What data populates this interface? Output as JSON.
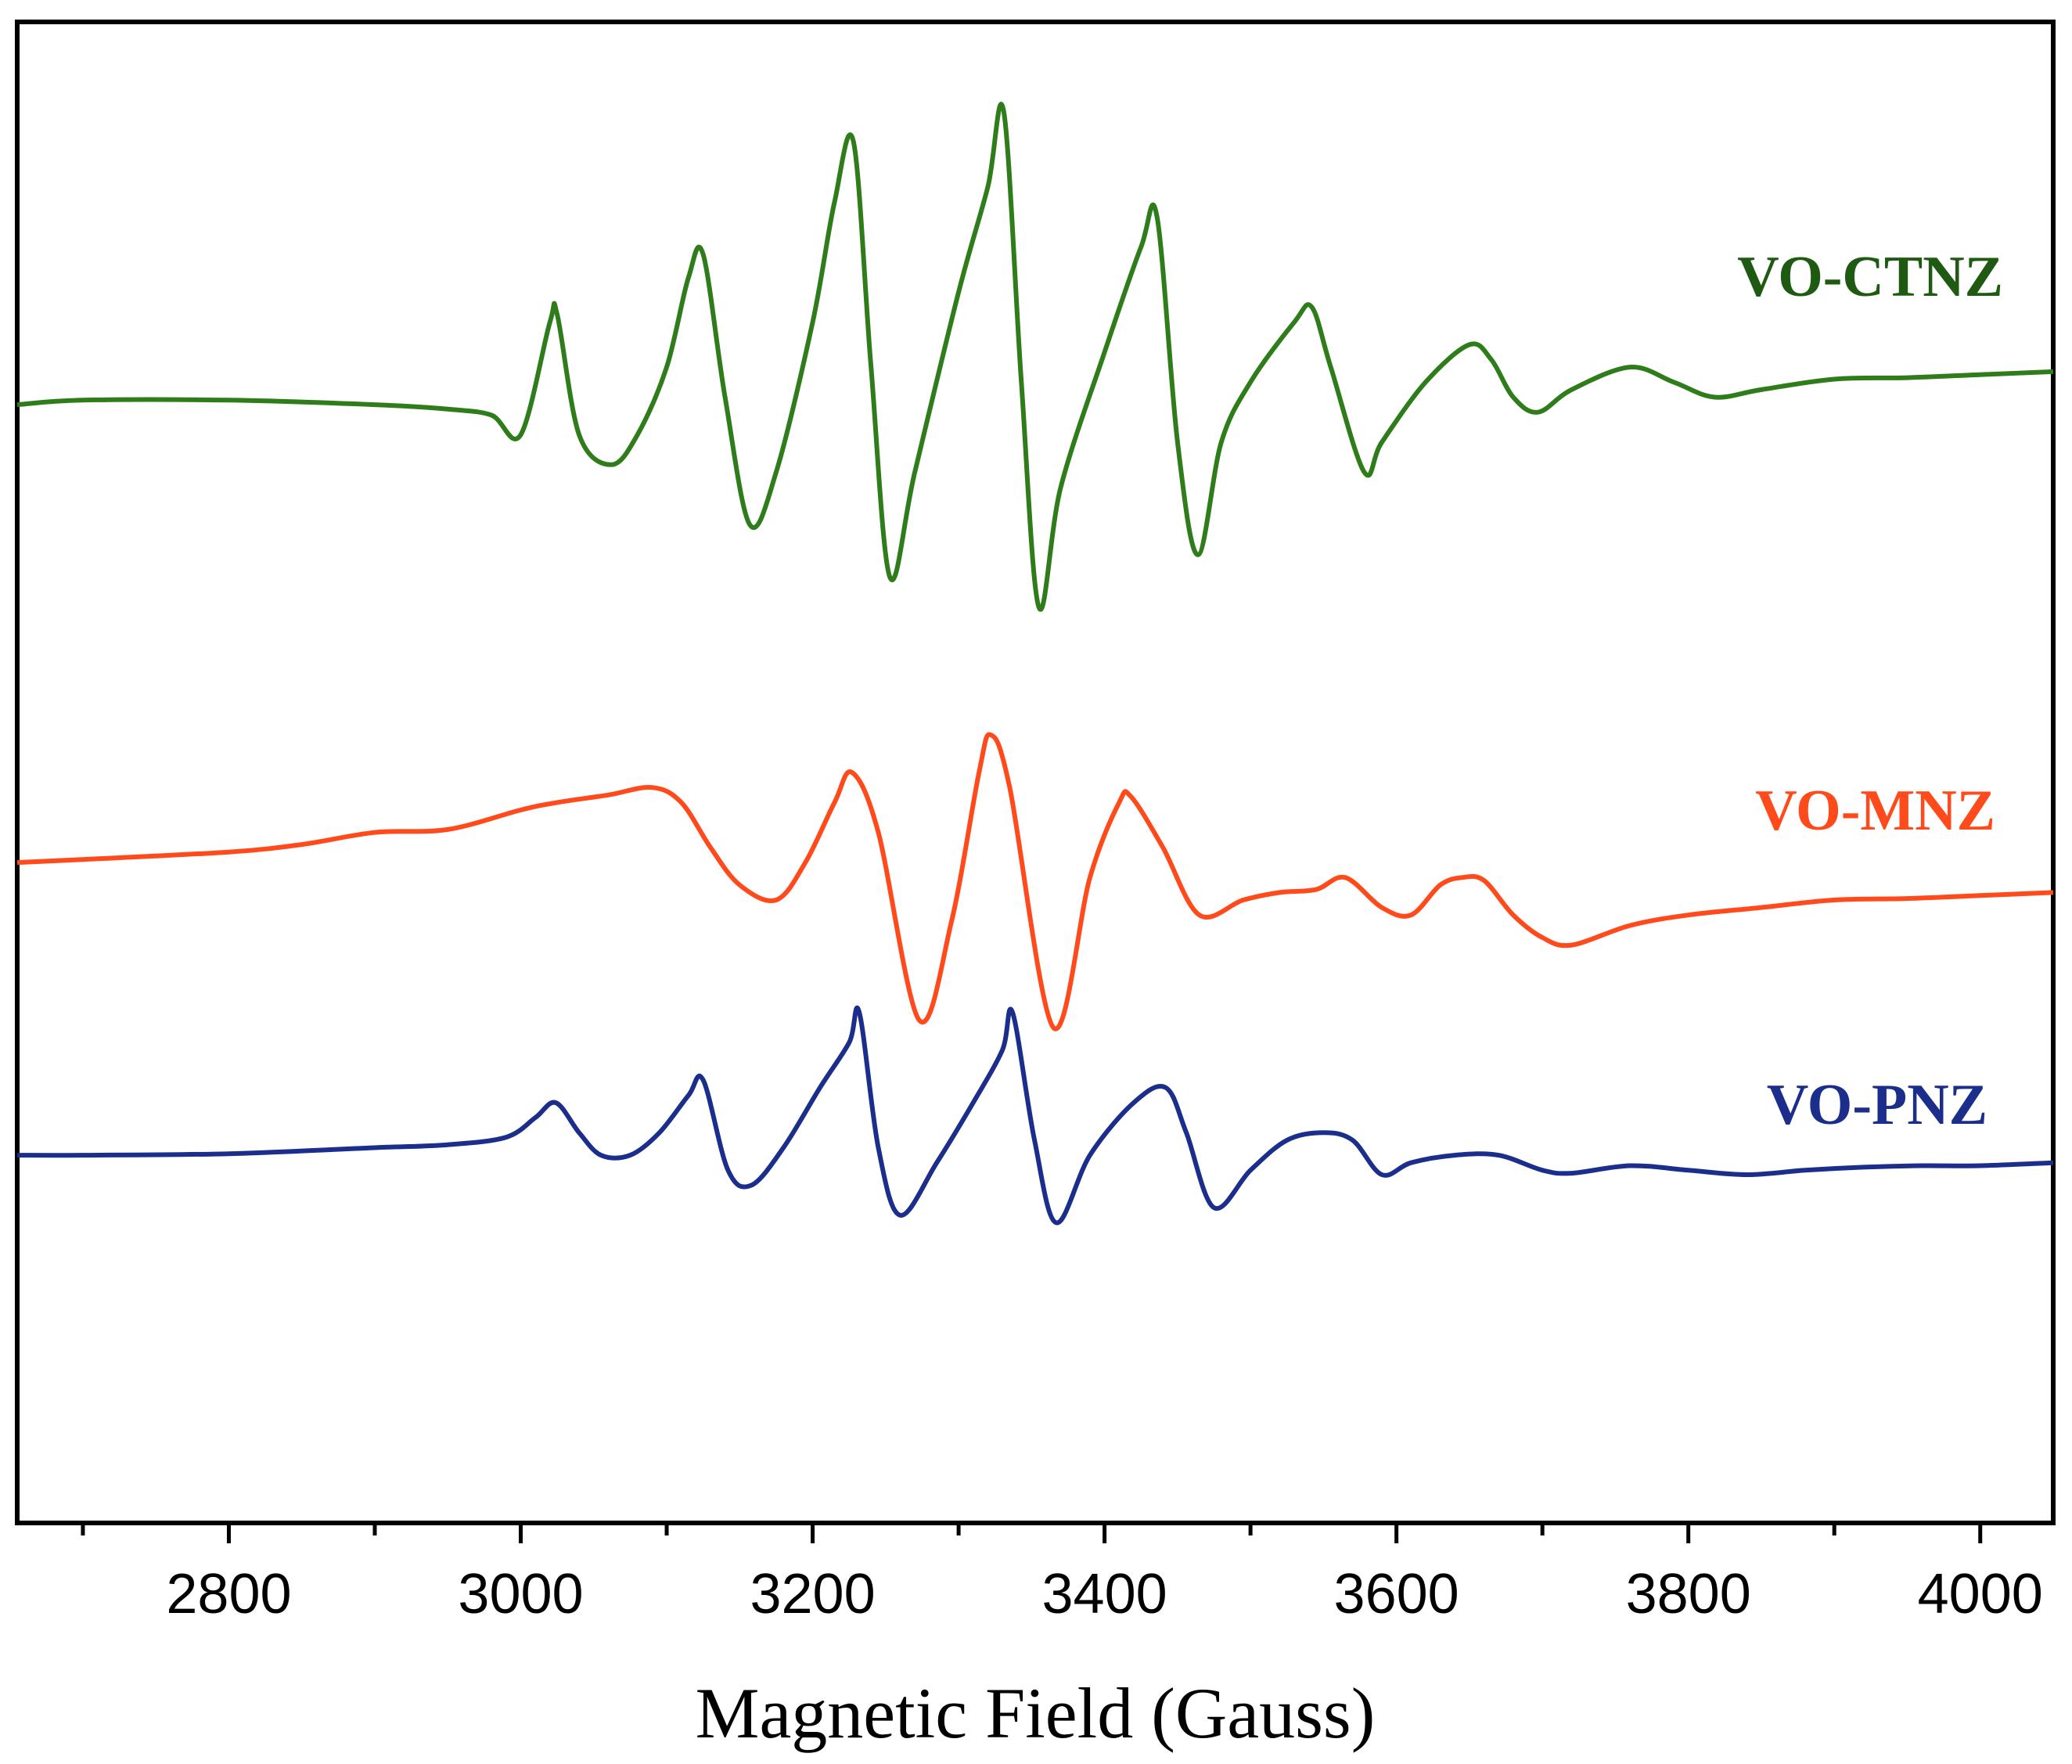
{
  "chart_data": {
    "type": "line",
    "title": "",
    "xlabel": "Magnetic Field (Gauss)",
    "ylabel": "",
    "xlim": [
      2655,
      4050
    ],
    "ylim": [
      0,
      1
    ],
    "y_axis_visible": false,
    "grid": false,
    "xticks": [
      2800,
      3000,
      3200,
      3400,
      3600,
      3800,
      4000
    ],
    "xtick_labels": [
      "2800",
      "3000",
      "3200",
      "3400",
      "3600",
      "3800",
      "4000"
    ],
    "minor_xticks": [
      2700,
      2900,
      3100,
      3300,
      3500,
      3700,
      3900
    ],
    "series": [
      {
        "name": "VO-CTNZ",
        "label": "VO-CTNZ",
        "color": "#2e7d1a",
        "label_color": "#1e5a12",
        "x": [
          2655,
          2700,
          2800,
          2900,
          2950,
          2980,
          3000,
          3020,
          3025,
          3040,
          3062,
          3080,
          3100,
          3115,
          3125,
          3140,
          3157,
          3175,
          3200,
          3215,
          3228,
          3240,
          3253,
          3270,
          3300,
          3320,
          3331,
          3343,
          3355,
          3370,
          3400,
          3425,
          3436,
          3450,
          3464,
          3480,
          3500,
          3530,
          3542,
          3555,
          3578,
          3590,
          3620,
          3650,
          3665,
          3680,
          3697,
          3720,
          3760,
          3790,
          3818,
          3850,
          3900,
          3950,
          4000,
          4050
        ],
        "y": [
          0.745,
          0.748,
          0.748,
          0.745,
          0.742,
          0.738,
          0.725,
          0.8,
          0.805,
          0.725,
          0.705,
          0.725,
          0.77,
          0.83,
          0.845,
          0.75,
          0.665,
          0.7,
          0.8,
          0.88,
          0.92,
          0.77,
          0.63,
          0.7,
          0.82,
          0.89,
          0.94,
          0.76,
          0.61,
          0.69,
          0.78,
          0.85,
          0.87,
          0.72,
          0.645,
          0.72,
          0.76,
          0.8,
          0.81,
          0.77,
          0.7,
          0.72,
          0.76,
          0.785,
          0.775,
          0.75,
          0.74,
          0.755,
          0.77,
          0.76,
          0.75,
          0.755,
          0.762,
          0.763,
          0.765,
          0.767
        ]
      },
      {
        "name": "VO-MNZ",
        "label": "VO-MNZ",
        "color": "#ff4a1c",
        "label_color": "#ff4a1c",
        "x": [
          2655,
          2700,
          2800,
          2850,
          2900,
          2950,
          3000,
          3025,
          3060,
          3090,
          3110,
          3130,
          3150,
          3175,
          3195,
          3215,
          3227,
          3245,
          3273,
          3295,
          3314,
          3322,
          3335,
          3365,
          3390,
          3410,
          3418,
          3440,
          3465,
          3495,
          3520,
          3545,
          3565,
          3590,
          3610,
          3630,
          3645,
          3660,
          3680,
          3700,
          3720,
          3760,
          3800,
          3850,
          3900,
          3950,
          4000,
          4050
        ],
        "y": [
          0.44,
          0.442,
          0.447,
          0.452,
          0.46,
          0.462,
          0.475,
          0.48,
          0.485,
          0.49,
          0.48,
          0.45,
          0.425,
          0.415,
          0.44,
          0.48,
          0.5,
          0.46,
          0.335,
          0.4,
          0.5,
          0.525,
          0.49,
          0.33,
          0.43,
          0.48,
          0.484,
          0.45,
          0.405,
          0.415,
          0.42,
          0.422,
          0.43,
          0.41,
          0.405,
          0.425,
          0.43,
          0.428,
          0.405,
          0.39,
          0.385,
          0.398,
          0.405,
          0.41,
          0.415,
          0.416,
          0.418,
          0.42
        ]
      },
      {
        "name": "VO-PNZ",
        "label": "VO-PNZ",
        "color": "#1c2e8c",
        "label_color": "#1c2e8c",
        "x": [
          2655,
          2700,
          2800,
          2900,
          2950,
          2990,
          3010,
          3024,
          3040,
          3055,
          3075,
          3095,
          3115,
          3125,
          3142,
          3158,
          3180,
          3205,
          3225,
          3232,
          3245,
          3260,
          3285,
          3310,
          3330,
          3337,
          3352,
          3367,
          3390,
          3420,
          3442,
          3456,
          3475,
          3500,
          3525,
          3550,
          3570,
          3590,
          3610,
          3640,
          3670,
          3700,
          3720,
          3760,
          3800,
          3840,
          3880,
          3920,
          3960,
          4000,
          4050
        ],
        "y": [
          0.245,
          0.245,
          0.246,
          0.25,
          0.252,
          0.257,
          0.27,
          0.28,
          0.26,
          0.245,
          0.245,
          0.26,
          0.285,
          0.295,
          0.235,
          0.225,
          0.25,
          0.29,
          0.32,
          0.34,
          0.25,
          0.205,
          0.24,
          0.28,
          0.315,
          0.34,
          0.255,
          0.2,
          0.245,
          0.28,
          0.29,
          0.26,
          0.21,
          0.235,
          0.255,
          0.26,
          0.255,
          0.232,
          0.24,
          0.245,
          0.245,
          0.235,
          0.233,
          0.238,
          0.235,
          0.232,
          0.235,
          0.237,
          0.238,
          0.238,
          0.24
        ]
      }
    ]
  }
}
